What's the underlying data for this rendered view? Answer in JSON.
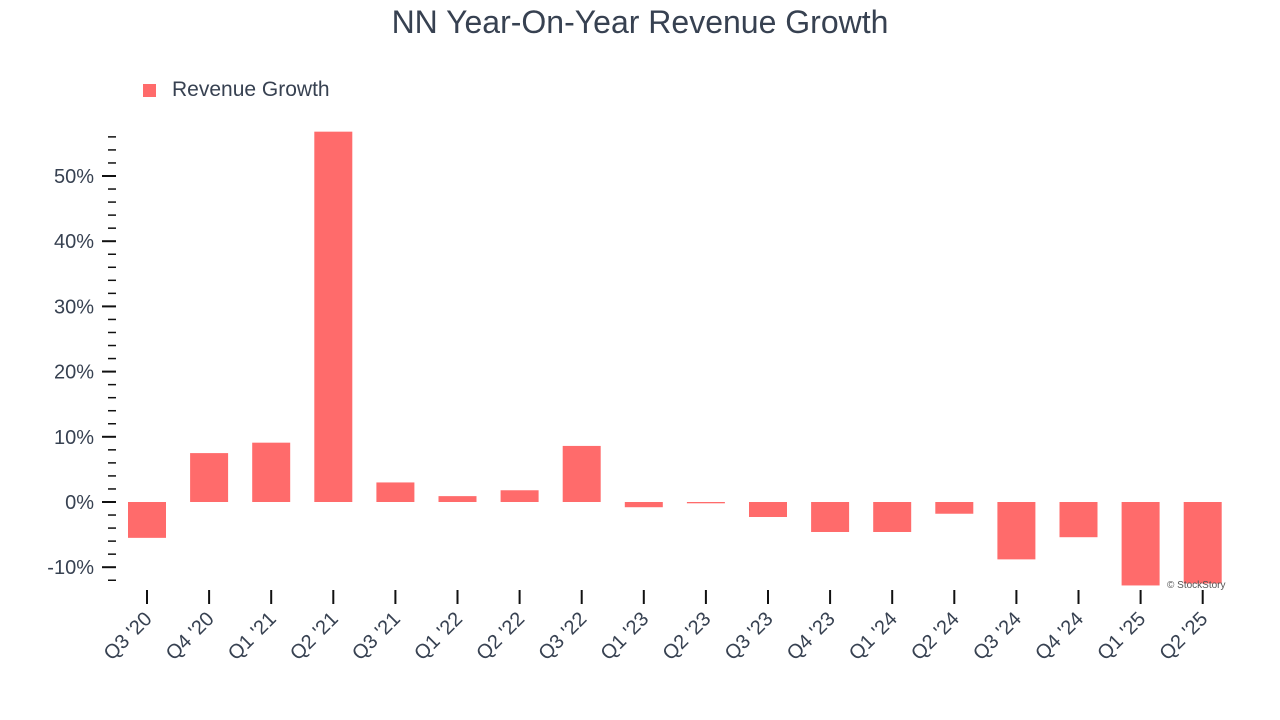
{
  "title": "NN Year-On-Year Revenue Growth",
  "watermark": "© StockStory",
  "colors": {
    "bar": "#ff6b6b",
    "text": "#374151",
    "axis": "#111111"
  },
  "chart_data": {
    "type": "bar",
    "title": "NN Year-On-Year Revenue Growth",
    "legend": {
      "position": "top-left",
      "entries": [
        "Revenue Growth"
      ]
    },
    "grid": false,
    "xlabel": "",
    "ylabel": "",
    "ylim": [
      -13,
      57
    ],
    "yticks": [
      -10,
      0,
      10,
      20,
      30,
      40,
      50
    ],
    "ytick_labels": [
      "-10%",
      "0%",
      "10%",
      "20%",
      "30%",
      "40%",
      "50%"
    ],
    "categories": [
      "Q3 '20",
      "Q4 '20",
      "Q1 '21",
      "Q2 '21",
      "Q3 '21",
      "Q1 '22",
      "Q2 '22",
      "Q3 '22",
      "Q1 '23",
      "Q2 '23",
      "Q3 '23",
      "Q4 '23",
      "Q1 '24",
      "Q2 '24",
      "Q3 '24",
      "Q4 '24",
      "Q1 '25",
      "Q2 '25"
    ],
    "series": [
      {
        "name": "Revenue Growth",
        "values": [
          -5.5,
          7.5,
          9.1,
          56.8,
          3.0,
          0.9,
          1.8,
          8.6,
          -0.8,
          -0.2,
          -2.3,
          -4.6,
          -4.6,
          -1.8,
          -8.8,
          -5.4,
          -12.8,
          -12.5
        ]
      }
    ]
  }
}
